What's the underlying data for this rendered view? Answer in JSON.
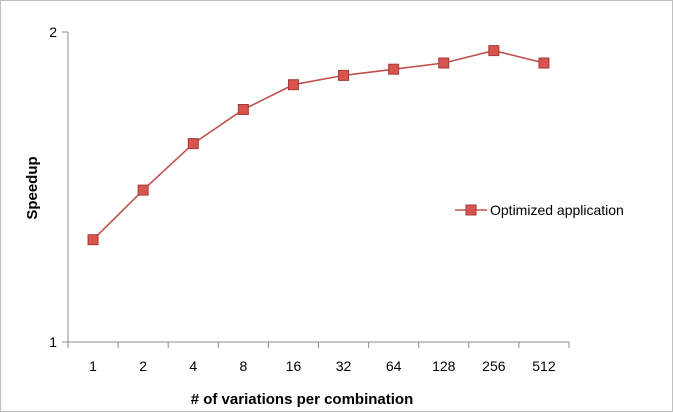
{
  "chart_data": {
    "type": "line",
    "title": "",
    "xlabel": "# of variations per combination",
    "ylabel": "Speedup",
    "categories": [
      "1",
      "2",
      "4",
      "8",
      "16",
      "32",
      "64",
      "128",
      "256",
      "512"
    ],
    "ylim": [
      1,
      2
    ],
    "y_ticks": [
      "1",
      "2"
    ],
    "grid": false,
    "legend_position": "right",
    "series": [
      {
        "name": "Optimized application",
        "values": [
          1.33,
          1.49,
          1.64,
          1.75,
          1.83,
          1.86,
          1.88,
          1.9,
          1.94,
          1.9
        ],
        "color": "#c0504d",
        "marker": "square"
      }
    ]
  }
}
